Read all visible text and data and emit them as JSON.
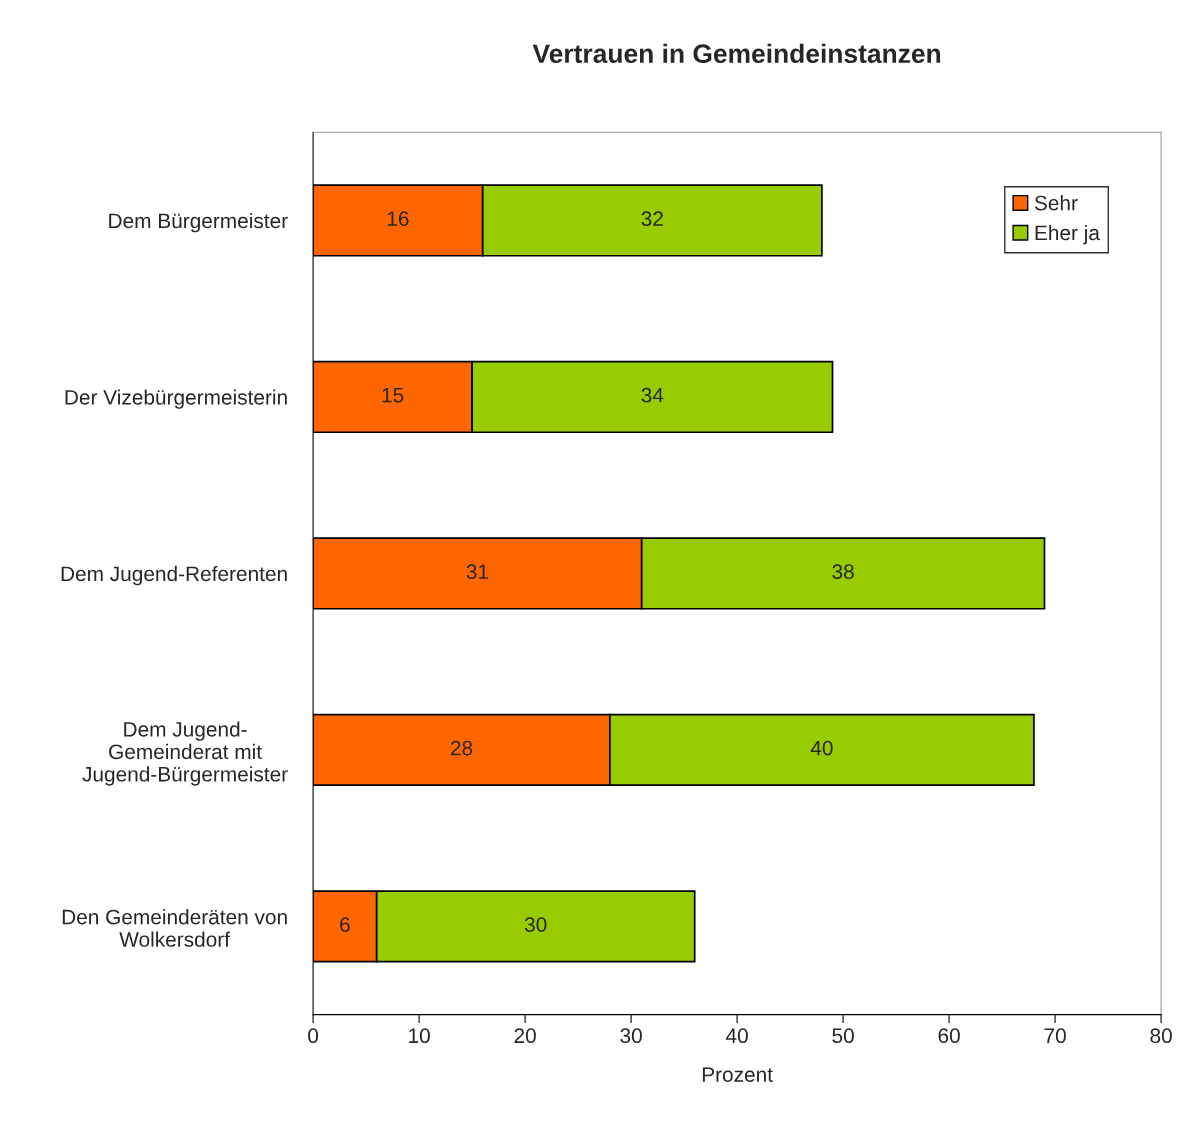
{
  "chart_data": {
    "type": "bar",
    "orientation": "horizontal",
    "stacked": true,
    "title": "Vertrauen in Gemeindeinstanzen",
    "xlabel": "Prozent",
    "categories": [
      "Dem Bürgermeister",
      "Der Vizebürgermeisterin",
      "Dem Jugend-Referenten",
      "Dem Jugend-\nGemeinderat mit\nJugend-Bürgermeister",
      "Den Gemeinderäten von\nWolkersdorf"
    ],
    "series": [
      {
        "name": "Sehr",
        "color": "#ff6600",
        "values": [
          16,
          15,
          31,
          28,
          6
        ]
      },
      {
        "name": "Eher ja",
        "color": "#99cc00",
        "values": [
          32,
          34,
          38,
          40,
          30
        ]
      }
    ],
    "xlim": [
      0,
      80
    ],
    "xticks": [
      0,
      10,
      20,
      30,
      40,
      50,
      60,
      70,
      80
    ],
    "grid": false,
    "legend": "top right",
    "data_labels": true
  }
}
